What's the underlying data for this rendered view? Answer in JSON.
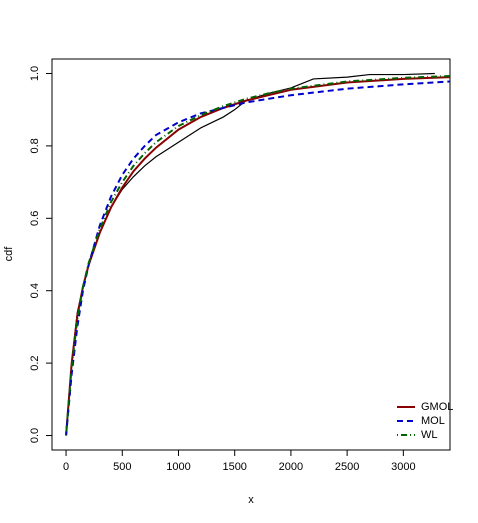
{
  "chart_data": {
    "type": "line",
    "x_label": "x",
    "y_label": "cdf",
    "xlim": [
      -125,
      3415
    ],
    "ylim": [
      -0.04,
      1.04
    ],
    "xticks": [
      0,
      500,
      1000,
      1500,
      2000,
      2500,
      3000
    ],
    "yticks": [
      {
        "value": 0,
        "label": "0.0"
      },
      {
        "value": 0.2,
        "label": "0.2"
      },
      {
        "value": 0.4,
        "label": "0.4"
      },
      {
        "value": 0.6,
        "label": "0.6"
      },
      {
        "value": 0.8,
        "label": "0.8"
      },
      {
        "value": 1,
        "label": "1.0"
      }
    ],
    "legend": "bottom-right",
    "empirical": {
      "color": "#000000",
      "x": [
        0,
        50,
        100,
        150,
        200,
        300,
        400,
        500,
        600,
        700,
        800,
        900,
        1000,
        1200,
        1400,
        1500,
        1600,
        1800,
        2000,
        2200,
        2500,
        2700,
        3000,
        3280
      ],
      "values": [
        0,
        0.2,
        0.34,
        0.41,
        0.47,
        0.56,
        0.63,
        0.68,
        0.715,
        0.745,
        0.77,
        0.79,
        0.81,
        0.85,
        0.88,
        0.9,
        0.925,
        0.945,
        0.96,
        0.985,
        0.99,
        0.997,
        0.997,
        1.0
      ]
    },
    "x": [
      0,
      50,
      100,
      150,
      200,
      300,
      400,
      500,
      600,
      700,
      800,
      1000,
      1200,
      1400,
      1600,
      1800,
      2000,
      2500,
      3000,
      3415
    ],
    "series": [
      {
        "name": "GMOL",
        "color": "#8b0000",
        "dash": "solid",
        "values": [
          0,
          0.2,
          0.33,
          0.41,
          0.47,
          0.56,
          0.63,
          0.685,
          0.73,
          0.765,
          0.795,
          0.845,
          0.88,
          0.905,
          0.925,
          0.94,
          0.955,
          0.975,
          0.985,
          0.99
        ]
      },
      {
        "name": "MOL",
        "color": "#0000cd",
        "dash": "dashed",
        "values": [
          0,
          0.17,
          0.3,
          0.4,
          0.47,
          0.58,
          0.66,
          0.72,
          0.765,
          0.8,
          0.83,
          0.865,
          0.89,
          0.905,
          0.92,
          0.93,
          0.94,
          0.958,
          0.97,
          0.978
        ]
      },
      {
        "name": "WL",
        "color": "#006400",
        "dash": "dotdash",
        "values": [
          0,
          0.19,
          0.32,
          0.41,
          0.475,
          0.57,
          0.645,
          0.7,
          0.745,
          0.78,
          0.81,
          0.855,
          0.885,
          0.91,
          0.93,
          0.945,
          0.958,
          0.978,
          0.988,
          0.993
        ]
      }
    ]
  }
}
